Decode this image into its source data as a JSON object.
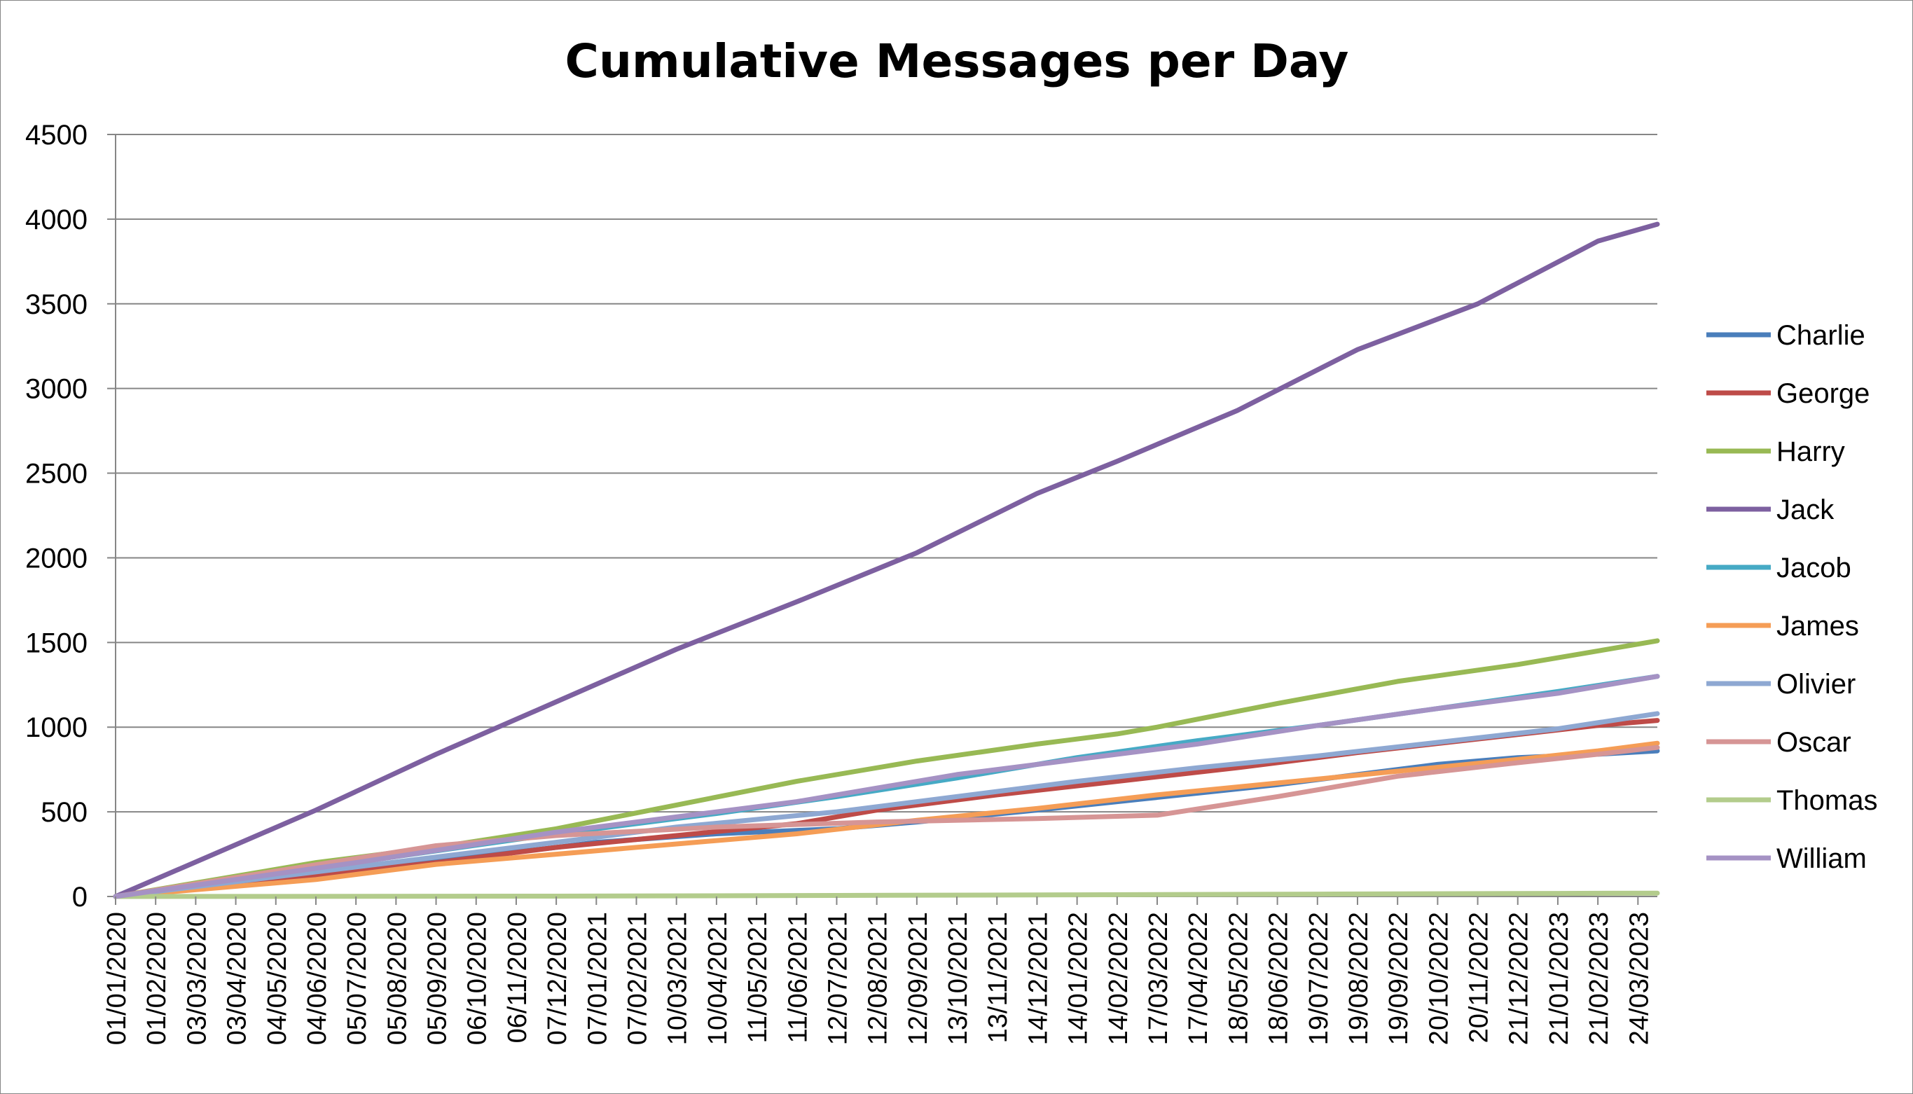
{
  "chart_data": {
    "type": "line",
    "title": "Cumulative Messages per Day",
    "xlabel": "",
    "ylabel": "",
    "ylim": [
      0,
      4500
    ],
    "yticks": [
      0,
      500,
      1000,
      1500,
      2000,
      2500,
      3000,
      3500,
      4000,
      4500
    ],
    "x_start": "01/01/2020",
    "x_end": "08/04/2023",
    "x_tick_labels": [
      "01/01/2020",
      "01/02/2020",
      "03/03/2020",
      "03/04/2020",
      "04/05/2020",
      "04/06/2020",
      "05/07/2020",
      "05/08/2020",
      "05/09/2020",
      "06/10/2020",
      "06/11/2020",
      "07/12/2020",
      "07/01/2021",
      "07/02/2021",
      "10/03/2021",
      "10/04/2021",
      "11/05/2021",
      "11/06/2021",
      "12/07/2021",
      "12/08/2021",
      "12/09/2021",
      "13/10/2021",
      "13/11/2021",
      "14/12/2021",
      "14/01/2022",
      "14/02/2022",
      "17/03/2022",
      "17/04/2022",
      "18/05/2022",
      "18/06/2022",
      "19/07/2022",
      "19/08/2022",
      "19/09/2022",
      "20/10/2022",
      "20/11/2022",
      "21/12/2022",
      "21/01/2023",
      "21/02/2023",
      "24/03/2023"
    ],
    "grid": true,
    "legend_position": "right",
    "series": [
      {
        "name": "Charlie",
        "color": "#4A7EBB",
        "x": [
          "01/01/2020",
          "07/12/2020",
          "07/01/2021",
          "10/04/2021",
          "12/07/2021",
          "12/09/2021",
          "14/12/2021",
          "14/02/2022",
          "17/04/2022",
          "18/06/2022",
          "19/08/2022",
          "20/10/2022",
          "21/12/2022",
          "21/02/2023",
          "08/04/2023"
        ],
        "values": [
          0,
          290,
          320,
          370,
          400,
          440,
          510,
          560,
          610,
          660,
          720,
          780,
          820,
          840,
          860
        ]
      },
      {
        "name": "George",
        "color": "#BE4B48",
        "x": [
          "01/01/2020",
          "05/09/2020",
          "07/12/2020",
          "10/03/2021",
          "11/06/2021",
          "12/08/2021",
          "13/11/2021",
          "14/02/2022",
          "18/05/2022",
          "19/08/2022",
          "20/11/2022",
          "21/02/2023",
          "08/04/2023"
        ],
        "values": [
          0,
          200,
          290,
          360,
          430,
          510,
          600,
          680,
          760,
          850,
          930,
          1010,
          1040
        ]
      },
      {
        "name": "Harry",
        "color": "#98B954",
        "x": [
          "01/01/2020",
          "04/06/2020",
          "05/09/2020",
          "07/12/2020",
          "10/03/2021",
          "11/06/2021",
          "12/09/2021",
          "14/12/2021",
          "14/02/2022",
          "17/03/2022",
          "18/06/2022",
          "19/09/2022",
          "21/12/2022",
          "21/02/2023",
          "08/04/2023"
        ],
        "values": [
          0,
          200,
          290,
          400,
          540,
          680,
          800,
          900,
          960,
          1000,
          1140,
          1270,
          1370,
          1450,
          1510
        ]
      },
      {
        "name": "Jack",
        "color": "#7D60A0",
        "x": [
          "01/01/2020",
          "04/06/2020",
          "05/09/2020",
          "07/12/2020",
          "10/03/2021",
          "11/06/2021",
          "12/09/2021",
          "14/12/2021",
          "14/02/2022",
          "18/05/2022",
          "19/08/2022",
          "20/11/2022",
          "21/02/2023",
          "08/04/2023"
        ],
        "values": [
          0,
          510,
          840,
          1150,
          1460,
          1740,
          2030,
          2380,
          2570,
          2870,
          3230,
          3500,
          3870,
          3970
        ]
      },
      {
        "name": "Jacob",
        "color": "#46AAC5",
        "x": [
          "01/01/2020",
          "07/12/2020",
          "10/04/2021",
          "12/07/2021",
          "13/10/2021",
          "14/01/2022",
          "17/04/2022",
          "19/07/2022",
          "20/10/2022",
          "21/01/2023",
          "08/04/2023"
        ],
        "values": [
          0,
          370,
          490,
          590,
          700,
          820,
          920,
          1010,
          1110,
          1210,
          1300
        ]
      },
      {
        "name": "James",
        "color": "#F59D56",
        "x": [
          "01/01/2020",
          "04/06/2020",
          "05/09/2020",
          "07/12/2020",
          "10/03/2021",
          "11/06/2021",
          "12/09/2021",
          "14/12/2021",
          "17/03/2022",
          "18/06/2022",
          "19/09/2022",
          "21/12/2022",
          "21/02/2023",
          "08/04/2023"
        ],
        "values": [
          0,
          100,
          190,
          250,
          310,
          370,
          450,
          520,
          600,
          670,
          740,
          810,
          860,
          905
        ]
      },
      {
        "name": "Olivier",
        "color": "#8EA8D2",
        "x": [
          "01/01/2020",
          "07/12/2020",
          "10/03/2021",
          "12/07/2021",
          "13/10/2021",
          "14/01/2022",
          "17/04/2022",
          "19/07/2022",
          "20/10/2022",
          "21/01/2023",
          "08/04/2023"
        ],
        "values": [
          0,
          320,
          410,
          500,
          590,
          680,
          760,
          830,
          910,
          990,
          1080
        ]
      },
      {
        "name": "Oscar",
        "color": "#D69595",
        "x": [
          "01/01/2020",
          "05/09/2020",
          "07/12/2020",
          "10/04/2021",
          "12/08/2021",
          "14/12/2021",
          "17/03/2022",
          "18/06/2022",
          "19/09/2022",
          "21/12/2022",
          "21/02/2023",
          "08/04/2023"
        ],
        "values": [
          0,
          300,
          360,
          410,
          440,
          460,
          480,
          590,
          710,
          790,
          840,
          880
        ]
      },
      {
        "name": "Thomas",
        "color": "#B3CC8C",
        "x": [
          "01/01/2020",
          "07/12/2020",
          "12/07/2021",
          "14/01/2022",
          "19/07/2022",
          "21/01/2023",
          "08/04/2023"
        ],
        "values": [
          0,
          2,
          6,
          10,
          14,
          18,
          20
        ]
      },
      {
        "name": "William",
        "color": "#A592C4",
        "x": [
          "01/01/2020",
          "05/07/2020",
          "07/12/2020",
          "10/03/2021",
          "11/06/2021",
          "13/10/2021",
          "14/01/2022",
          "17/04/2022",
          "19/07/2022",
          "20/10/2022",
          "21/01/2023",
          "08/04/2023"
        ],
        "values": [
          0,
          200,
          380,
          470,
          560,
          720,
          810,
          900,
          1010,
          1110,
          1200,
          1300
        ]
      }
    ]
  }
}
